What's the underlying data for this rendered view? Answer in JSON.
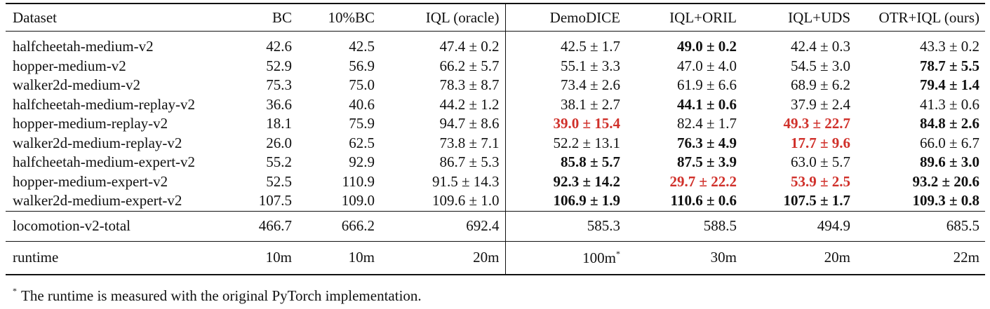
{
  "columns": [
    "Dataset",
    "BC",
    "10%BC",
    "IQL (oracle)",
    "DemoDICE",
    "IQL+ORIL",
    "IQL+UDS",
    "OTR+IQL (ours)"
  ],
  "rows": [
    {
      "name": "halfcheetah-medium-v2",
      "cells": [
        {
          "v": "42.6"
        },
        {
          "v": "42.5"
        },
        {
          "v": "47.4 ± 0.2"
        },
        {
          "v": "42.5 ± 1.7"
        },
        {
          "v": "49.0 ± 0.2",
          "bold": true
        },
        {
          "v": "42.4 ± 0.3"
        },
        {
          "v": "43.3 ± 0.2"
        }
      ]
    },
    {
      "name": "hopper-medium-v2",
      "cells": [
        {
          "v": "52.9"
        },
        {
          "v": "56.9"
        },
        {
          "v": "66.2 ± 5.7"
        },
        {
          "v": "55.1 ± 3.3"
        },
        {
          "v": "47.0 ± 4.0"
        },
        {
          "v": "54.5 ± 3.0"
        },
        {
          "v": "78.7 ± 5.5",
          "bold": true
        }
      ]
    },
    {
      "name": "walker2d-medium-v2",
      "cells": [
        {
          "v": "75.3"
        },
        {
          "v": "75.0"
        },
        {
          "v": "78.3 ± 8.7"
        },
        {
          "v": "73.4 ± 2.6"
        },
        {
          "v": "61.9 ± 6.6"
        },
        {
          "v": "68.9 ± 6.2"
        },
        {
          "v": "79.4 ± 1.4",
          "bold": true
        }
      ]
    },
    {
      "name": "halfcheetah-medium-replay-v2",
      "cells": [
        {
          "v": "36.6"
        },
        {
          "v": "40.6"
        },
        {
          "v": "44.2 ± 1.2"
        },
        {
          "v": "38.1 ± 2.7"
        },
        {
          "v": "44.1 ± 0.6",
          "bold": true
        },
        {
          "v": "37.9 ± 2.4"
        },
        {
          "v": "41.3 ± 0.6"
        }
      ]
    },
    {
      "name": "hopper-medium-replay-v2",
      "cells": [
        {
          "v": "18.1"
        },
        {
          "v": "75.9"
        },
        {
          "v": "94.7 ± 8.6"
        },
        {
          "v": "39.0 ± 15.4",
          "bold": true,
          "red": true
        },
        {
          "v": "82.4 ± 1.7"
        },
        {
          "v": "49.3 ± 22.7",
          "bold": true,
          "red": true
        },
        {
          "v": "84.8 ± 2.6",
          "bold": true
        }
      ]
    },
    {
      "name": "walker2d-medium-replay-v2",
      "cells": [
        {
          "v": "26.0"
        },
        {
          "v": "62.5"
        },
        {
          "v": "73.8 ± 7.1"
        },
        {
          "v": "52.2 ± 13.1"
        },
        {
          "v": "76.3 ± 4.9",
          "bold": true
        },
        {
          "v": "17.7 ± 9.6",
          "bold": true,
          "red": true
        },
        {
          "v": "66.0 ± 6.7"
        }
      ]
    },
    {
      "name": "halfcheetah-medium-expert-v2",
      "cells": [
        {
          "v": "55.2"
        },
        {
          "v": "92.9"
        },
        {
          "v": "86.7 ± 5.3"
        },
        {
          "v": "85.8 ± 5.7",
          "bold": true
        },
        {
          "v": "87.5 ± 3.9",
          "bold": true
        },
        {
          "v": "63.0 ± 5.7"
        },
        {
          "v": "89.6 ± 3.0",
          "bold": true
        }
      ]
    },
    {
      "name": "hopper-medium-expert-v2",
      "cells": [
        {
          "v": "52.5"
        },
        {
          "v": "110.9"
        },
        {
          "v": "91.5 ± 14.3"
        },
        {
          "v": "92.3 ± 14.2",
          "bold": true
        },
        {
          "v": "29.7 ± 22.2",
          "bold": true,
          "red": true
        },
        {
          "v": "53.9 ± 2.5",
          "bold": true,
          "red": true
        },
        {
          "v": "93.2 ± 20.6",
          "bold": true
        }
      ]
    },
    {
      "name": "walker2d-medium-expert-v2",
      "cells": [
        {
          "v": "107.5"
        },
        {
          "v": "109.0"
        },
        {
          "v": "109.6 ± 1.0"
        },
        {
          "v": "106.9 ± 1.9",
          "bold": true
        },
        {
          "v": "110.6 ± 0.6",
          "bold": true
        },
        {
          "v": "107.5 ± 1.7",
          "bold": true
        },
        {
          "v": "109.3 ± 0.8",
          "bold": true
        }
      ]
    }
  ],
  "total": {
    "name": "locomotion-v2-total",
    "cells": [
      "466.7",
      "666.2",
      "692.4",
      "585.3",
      "588.5",
      "494.9",
      "685.5"
    ]
  },
  "runtime": {
    "name": "runtime",
    "cells": [
      "10m",
      "10m",
      "20m",
      "100m",
      "30m",
      "20m",
      "22m"
    ],
    "star_marker": "*"
  },
  "footnote": {
    "marker": "*",
    "text": "The runtime is measured with the original PyTorch implementation."
  },
  "colors": {
    "highlight_red": "#d0302a",
    "text": "#111111"
  }
}
